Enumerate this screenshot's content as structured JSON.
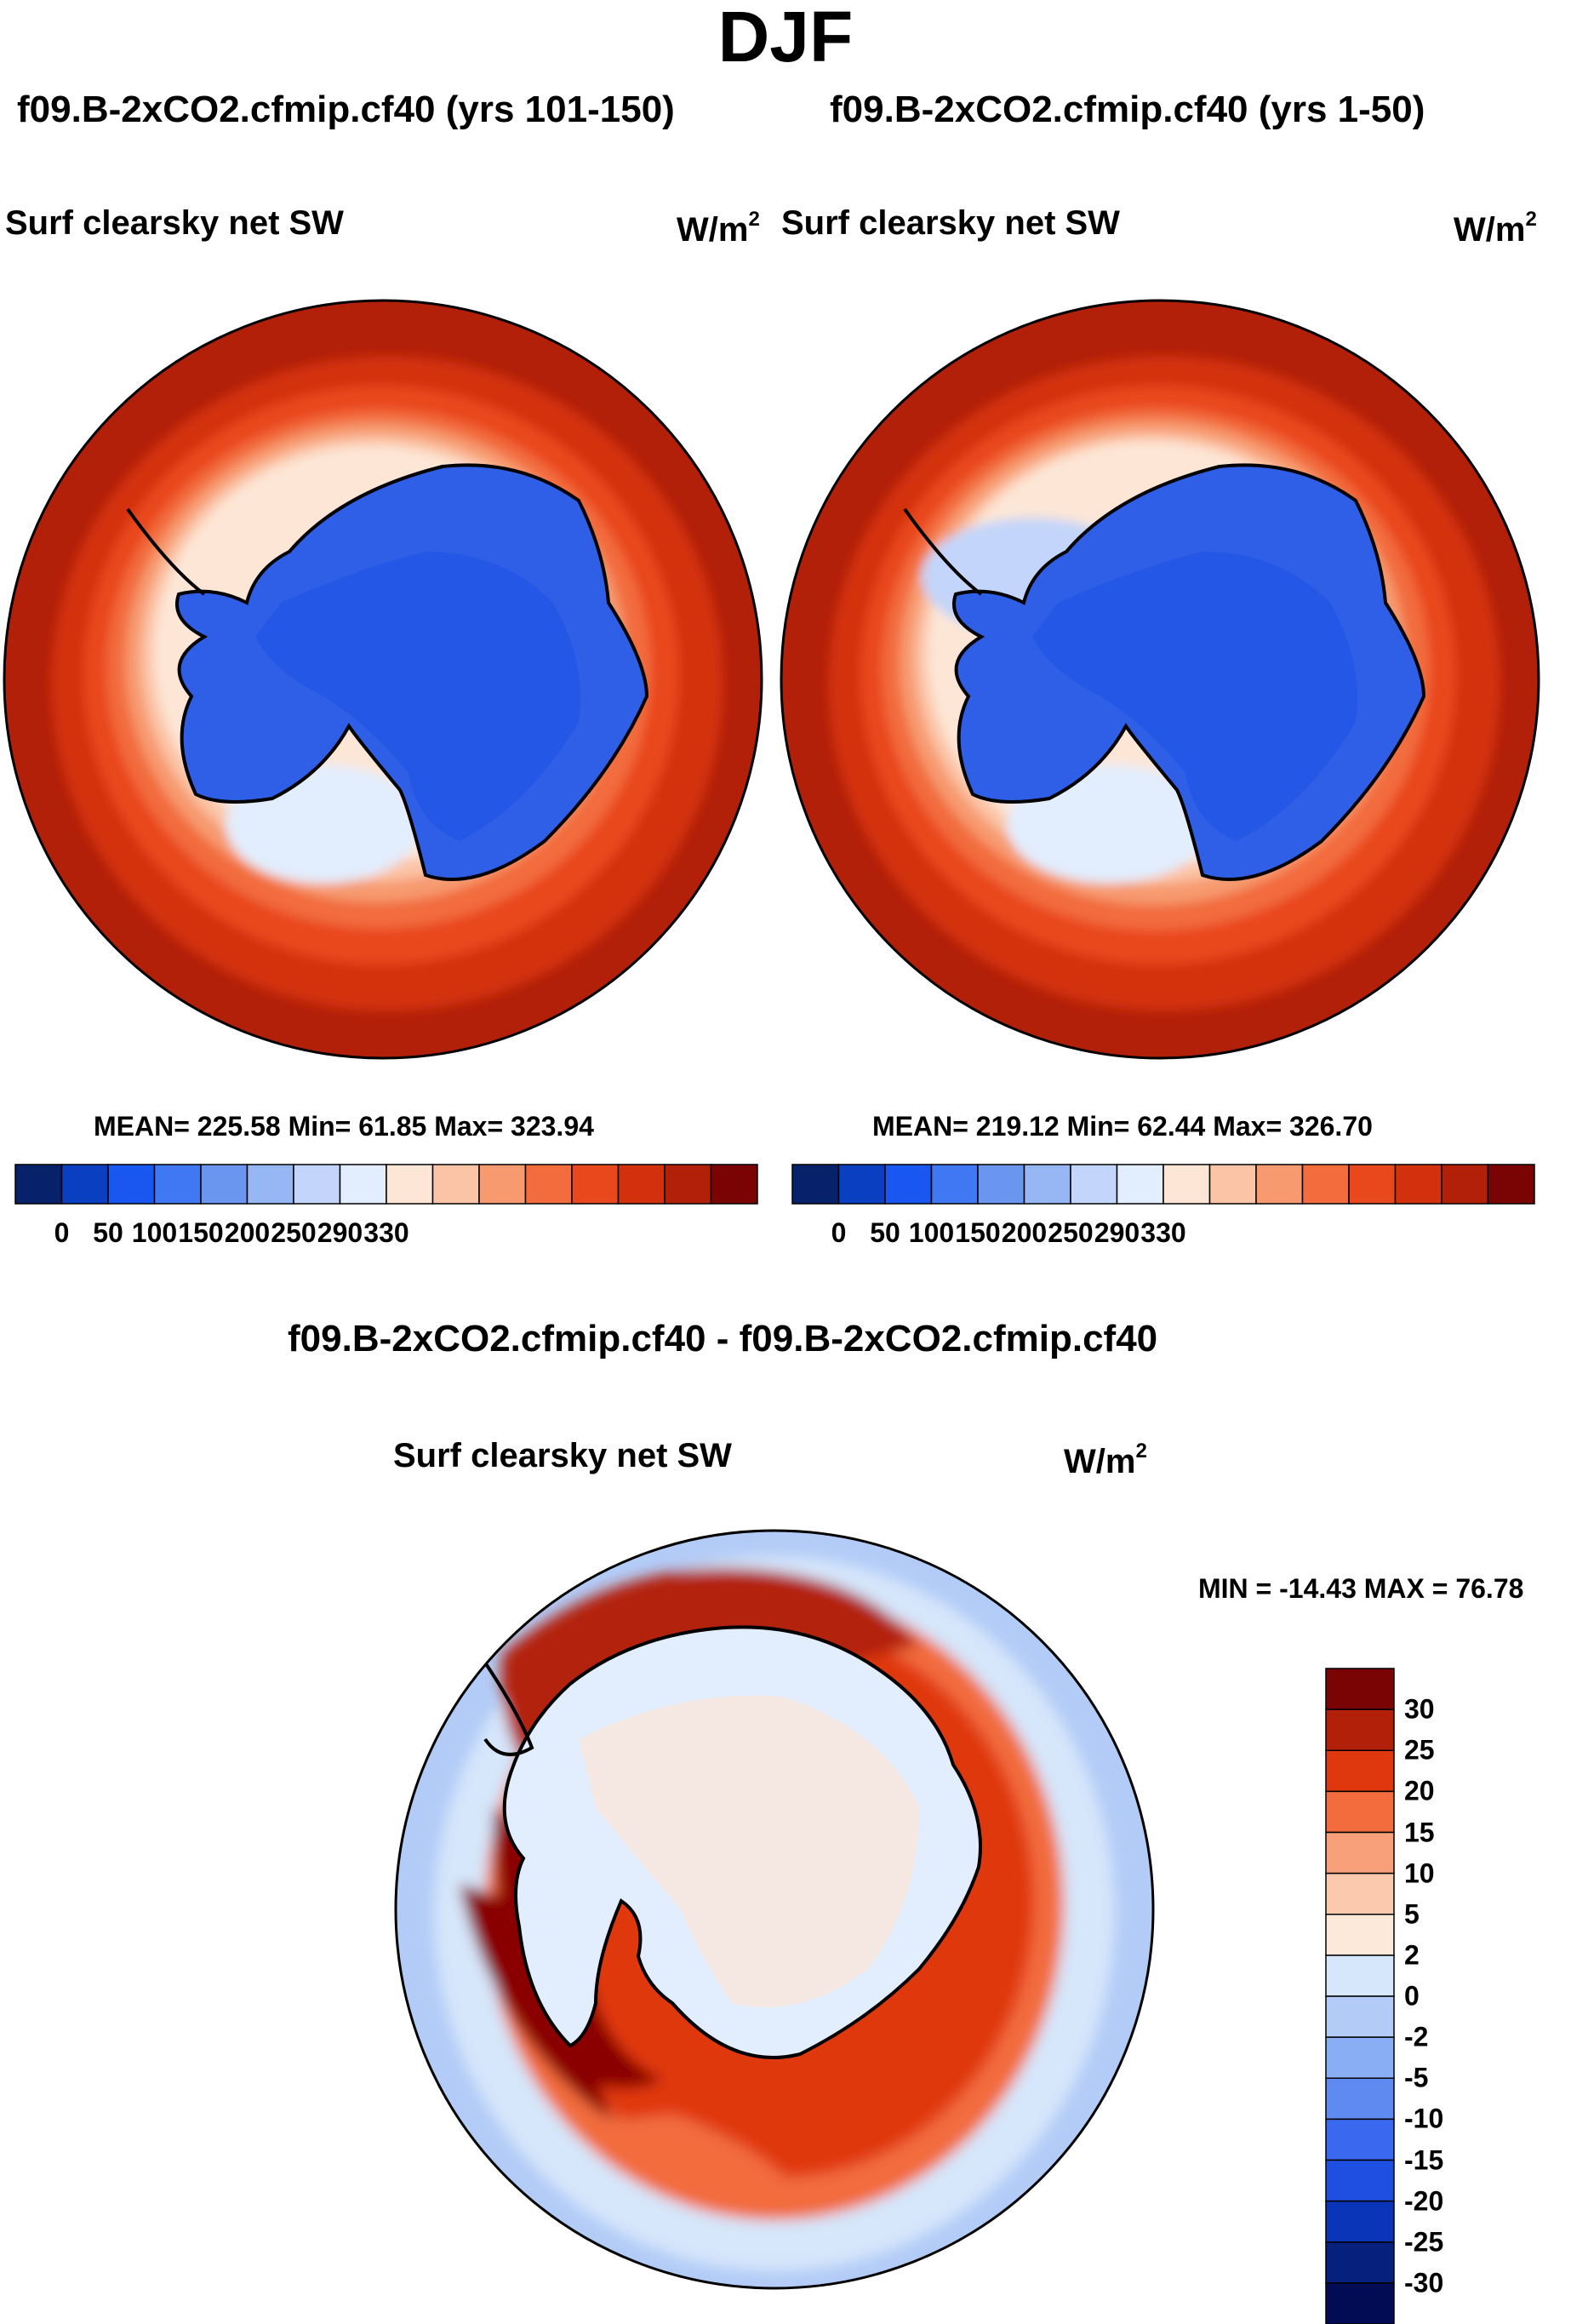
{
  "title": "DJF",
  "panels": [
    {
      "case": "f09.B-2xCO2.cfmip.cf40 (yrs 101-150)",
      "variable": "Surf clearsky net SW",
      "units_base": "W/m",
      "units_exp": "2",
      "stats": "MEAN= 225.58  Min=  61.85  Max= 323.94"
    },
    {
      "case": "f09.B-2xCO2.cfmip.cf40 (yrs 1-50)",
      "variable": "Surf clearsky net SW",
      "units_base": "W/m",
      "units_exp": "2",
      "stats": "MEAN= 219.12  Min=  62.44  Max= 326.70"
    }
  ],
  "difference": {
    "case": "f09.B-2xCO2.cfmip.cf40 - f09.B-2xCO2.cfmip.cf40",
    "variable": "Surf clearsky net SW",
    "units_base": "W/m",
    "units_exp": "2",
    "stats": "MIN = -14.43 MAX =  76.78"
  },
  "chart_data": [
    {
      "type": "heatmap",
      "projection": "south polar stereographic",
      "title": "f09.B-2xCO2.cfmip.cf40 (yrs 101-150)",
      "variable": "Surf clearsky net SW",
      "units": "W/m2",
      "mean": 225.58,
      "min": 61.85,
      "max": 323.94,
      "colorbar_orientation": "horizontal",
      "colorbar_ticks": [
        "0",
        "50",
        "100",
        "150",
        "200",
        "250",
        "290",
        "330"
      ],
      "colorbar_colors": [
        "#08216b",
        "#0b3fc2",
        "#1a56f0",
        "#3f78f2",
        "#6a96f0",
        "#97b6f4",
        "#c3d5fa",
        "#e2edfd",
        "#fde6d6",
        "#fbc4a6",
        "#f79a70",
        "#f26c3e",
        "#e9471c",
        "#d3300d",
        "#b3200a",
        "#7a0404"
      ]
    },
    {
      "type": "heatmap",
      "projection": "south polar stereographic",
      "title": "f09.B-2xCO2.cfmip.cf40 (yrs 1-50)",
      "variable": "Surf clearsky net SW",
      "units": "W/m2",
      "mean": 219.12,
      "min": 62.44,
      "max": 326.7,
      "colorbar_orientation": "horizontal",
      "colorbar_ticks": [
        "0",
        "50",
        "100",
        "150",
        "200",
        "250",
        "290",
        "330"
      ],
      "colorbar_colors": [
        "#08216b",
        "#0b3fc2",
        "#1a56f0",
        "#3f78f2",
        "#6a96f0",
        "#97b6f4",
        "#c3d5fa",
        "#e2edfd",
        "#fde6d6",
        "#fbc4a6",
        "#f79a70",
        "#f26c3e",
        "#e9471c",
        "#d3300d",
        "#b3200a",
        "#7a0404"
      ]
    },
    {
      "type": "heatmap",
      "projection": "south polar stereographic",
      "title": "f09.B-2xCO2.cfmip.cf40 - f09.B-2xCO2.cfmip.cf40",
      "variable": "Surf clearsky net SW",
      "units": "W/m2",
      "min": -14.43,
      "max": 76.78,
      "colorbar_orientation": "vertical",
      "colorbar_ticks": [
        "30",
        "25",
        "20",
        "15",
        "10",
        "5",
        "2",
        "0",
        "-2",
        "-5",
        "-10",
        "-15",
        "-20",
        "-25",
        "-30"
      ],
      "colorbar_colors": [
        "#7a0404",
        "#b3200a",
        "#e0380e",
        "#f26c3e",
        "#f8a07a",
        "#fbc9ad",
        "#fde9da",
        "#d6e6fb",
        "#b3ccf7",
        "#8aaef3",
        "#5f8bf0",
        "#3a68ee",
        "#1f4fe0",
        "#0b35b8",
        "#06207e",
        "#020c55"
      ]
    }
  ]
}
